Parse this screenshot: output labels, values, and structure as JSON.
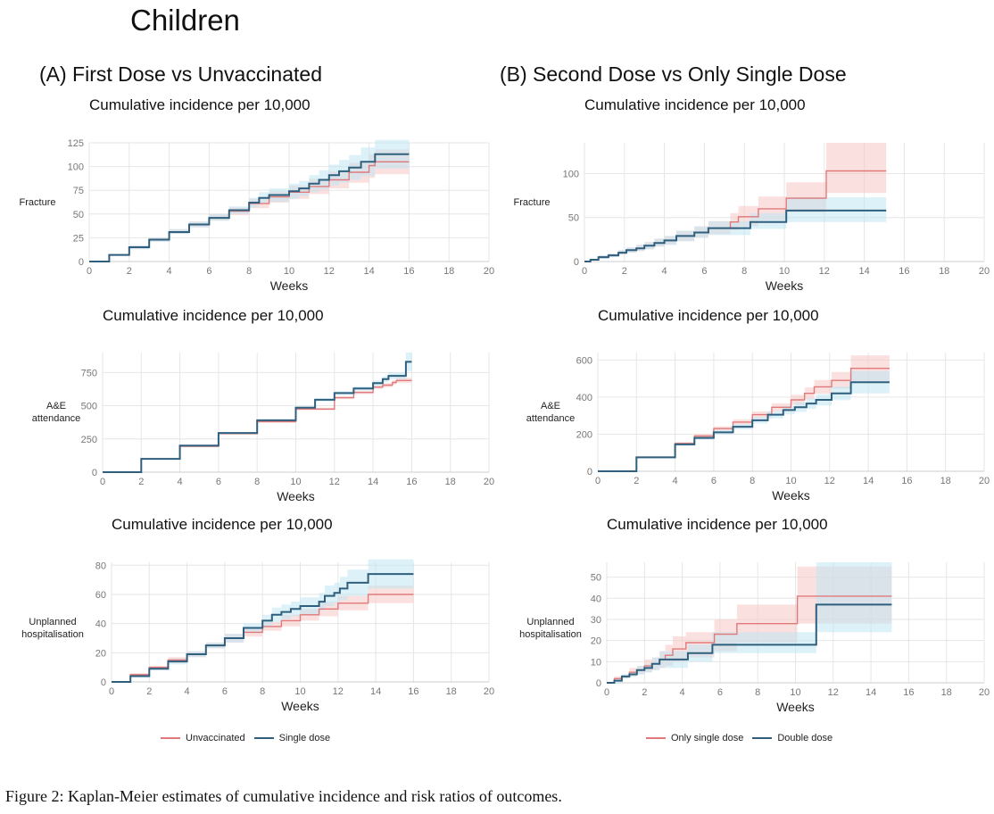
{
  "figure": {
    "title": "Children",
    "caption": "Figure 2: Kaplan-Meier estimates of cumulative incidence and risk ratios of outcomes.",
    "colors": {
      "red": "#e07a7a",
      "red_band": "#f6c9c6",
      "blue": "#2f5f7d",
      "blue_band": "#bfe6f2",
      "grid": "#e6e6e6",
      "axis": "#cccccc",
      "tick": "#777777"
    }
  },
  "columns": [
    {
      "title": "(A) First Dose vs Unvaccinated",
      "legend": [
        {
          "label": "Unvaccinated",
          "color": "#e07a7a"
        },
        {
          "label": "Single dose",
          "color": "#2f5f7d"
        }
      ]
    },
    {
      "title": "(B) Second Dose vs Only Single Dose",
      "legend": [
        {
          "label": "Only single dose",
          "color": "#e07a7a"
        },
        {
          "label": "Double dose",
          "color": "#2f5f7d"
        }
      ]
    }
  ],
  "chart_data": [
    {
      "id": "A-fracture",
      "type": "line",
      "step": true,
      "title": "Cumulative incidence per 10,000",
      "xlabel": "Weeks",
      "ylabel": "Fracture",
      "xlim": [
        0,
        20
      ],
      "ylim": [
        0,
        125
      ],
      "xticks": [
        0,
        2,
        4,
        6,
        8,
        10,
        12,
        14,
        16,
        18,
        20
      ],
      "yticks": [
        0,
        25,
        50,
        75,
        100,
        125
      ],
      "series": [
        {
          "name": "Unvaccinated",
          "color": "red",
          "x": [
            0,
            1,
            2,
            3,
            4,
            5,
            6,
            7,
            8,
            9,
            10,
            11,
            12,
            13,
            14,
            14.3,
            16
          ],
          "y": [
            0,
            7,
            15,
            23,
            31,
            39,
            46,
            53,
            61,
            68,
            73,
            79,
            86,
            94,
            101,
            105,
            105
          ],
          "lower": [
            0,
            6,
            13,
            21,
            29,
            36,
            43,
            49,
            56,
            62,
            66,
            71,
            77,
            83,
            88,
            92,
            92
          ],
          "upper": [
            0,
            8,
            17,
            25,
            34,
            42,
            50,
            57,
            66,
            74,
            80,
            87,
            95,
            104,
            113,
            118,
            118
          ]
        },
        {
          "name": "Single dose",
          "color": "blue",
          "x": [
            0,
            1,
            2,
            3,
            4,
            5,
            6,
            7,
            8,
            8.5,
            9,
            10,
            10.5,
            11,
            11.5,
            12,
            12.5,
            13,
            13.6,
            14.3,
            16
          ],
          "y": [
            0,
            7,
            15,
            23,
            31,
            39,
            46,
            54,
            62,
            67,
            70,
            74,
            77,
            82,
            86,
            91,
            95,
            99,
            105,
            113,
            113
          ],
          "lower": [
            0,
            6,
            13,
            21,
            29,
            36,
            43,
            50,
            57,
            61,
            63,
            66,
            69,
            73,
            76,
            80,
            83,
            86,
            90,
            98,
            98
          ],
          "upper": [
            0,
            8,
            17,
            25,
            34,
            42,
            50,
            58,
            67,
            73,
            77,
            82,
            85,
            91,
            96,
            102,
            107,
            112,
            120,
            128,
            128
          ]
        }
      ]
    },
    {
      "id": "B-fracture",
      "type": "line",
      "step": true,
      "title": "Cumulative incidence per 10,000",
      "xlabel": "Weeks",
      "ylabel": "Fracture",
      "xlim": [
        0,
        20
      ],
      "ylim": [
        0,
        135
      ],
      "xticks": [
        0,
        2,
        4,
        6,
        8,
        10,
        12,
        14,
        16,
        18,
        20
      ],
      "yticks": [
        0,
        50,
        100
      ],
      "series": [
        {
          "name": "Only single dose",
          "color": "red",
          "x": [
            0,
            0.3,
            0.7,
            1.2,
            1.7,
            2.1,
            2.6,
            3.0,
            3.5,
            4.0,
            4.6,
            5.5,
            6.2,
            7.3,
            7.7,
            8.7,
            10.1,
            12.1,
            15.1
          ],
          "y": [
            0,
            2,
            5,
            7,
            10,
            13,
            15,
            18,
            21,
            24,
            29,
            33,
            38,
            45,
            51,
            60,
            72,
            103,
            103
          ],
          "lower": [
            0,
            1,
            3,
            5,
            8,
            10,
            12,
            14,
            17,
            19,
            23,
            27,
            31,
            36,
            40,
            47,
            56,
            78,
            78
          ],
          "upper": [
            0,
            3,
            7,
            9,
            13,
            16,
            19,
            22,
            26,
            29,
            35,
            40,
            46,
            55,
            63,
            74,
            90,
            135,
            135
          ]
        },
        {
          "name": "Double dose",
          "color": "blue",
          "x": [
            0,
            0.3,
            0.7,
            1.2,
            1.7,
            2.1,
            2.6,
            3.0,
            3.5,
            4.0,
            4.6,
            5.5,
            6.2,
            8.3,
            10.1,
            15.1
          ],
          "y": [
            0,
            2,
            5,
            7,
            10,
            13,
            15,
            18,
            21,
            24,
            29,
            33,
            38,
            45,
            58,
            58
          ],
          "lower": [
            0,
            1,
            3,
            5,
            8,
            10,
            12,
            14,
            17,
            19,
            23,
            27,
            30,
            37,
            45,
            45
          ],
          "upper": [
            0,
            3,
            7,
            9,
            13,
            16,
            19,
            22,
            26,
            29,
            35,
            40,
            46,
            55,
            73,
            73
          ]
        }
      ]
    },
    {
      "id": "A-ae",
      "type": "line",
      "step": true,
      "title": "Cumulative incidence per 10,000",
      "xlabel": "Weeks",
      "ylabel": "A&E attendance",
      "xlim": [
        0,
        20
      ],
      "ylim": [
        0,
        900
      ],
      "xticks": [
        0,
        2,
        4,
        6,
        8,
        10,
        12,
        14,
        16,
        18,
        20
      ],
      "yticks": [
        0,
        250,
        500,
        750
      ],
      "series": [
        {
          "name": "Unvaccinated",
          "color": "red",
          "x": [
            0,
            2,
            4,
            6,
            8,
            10,
            12,
            13,
            14,
            14.5,
            15,
            15.2,
            16
          ],
          "y": [
            0,
            100,
            195,
            290,
            380,
            475,
            560,
            600,
            640,
            655,
            675,
            690,
            690
          ],
          "lower": [
            0,
            97,
            190,
            284,
            372,
            466,
            549,
            588,
            626,
            640,
            658,
            670,
            670
          ],
          "upper": [
            0,
            103,
            200,
            296,
            388,
            484,
            571,
            612,
            654,
            670,
            692,
            710,
            710
          ]
        },
        {
          "name": "Single dose",
          "color": "blue",
          "x": [
            0,
            2,
            4,
            6,
            8,
            10,
            11,
            12,
            13,
            14,
            14.5,
            14.8,
            15.7,
            16
          ],
          "y": [
            0,
            100,
            200,
            295,
            390,
            485,
            545,
            595,
            630,
            670,
            700,
            725,
            830,
            830
          ],
          "lower": [
            0,
            97,
            195,
            289,
            382,
            475,
            533,
            581,
            614,
            651,
            678,
            700,
            760,
            760
          ],
          "upper": [
            0,
            103,
            205,
            301,
            398,
            495,
            557,
            609,
            646,
            689,
            722,
            750,
            900,
            900
          ]
        }
      ]
    },
    {
      "id": "B-ae",
      "type": "line",
      "step": true,
      "title": "Cumulative incidence per 10,000",
      "xlabel": "Weeks",
      "ylabel": "A&E attendance",
      "xlim": [
        0,
        20
      ],
      "ylim": [
        0,
        640
      ],
      "xticks": [
        0,
        2,
        4,
        6,
        8,
        10,
        12,
        14,
        16,
        18,
        20
      ],
      "yticks": [
        0,
        200,
        400,
        600
      ],
      "series": [
        {
          "name": "Only single dose",
          "color": "red",
          "x": [
            0,
            2,
            4,
            5,
            6,
            7,
            8,
            9,
            10,
            10.7,
            11.2,
            12.1,
            13.1,
            15.1
          ],
          "y": [
            0,
            75,
            150,
            190,
            230,
            265,
            305,
            345,
            385,
            420,
            455,
            490,
            555,
            555
          ],
          "lower": [
            0,
            70,
            142,
            180,
            218,
            250,
            287,
            323,
            358,
            388,
            418,
            445,
            485,
            485
          ],
          "upper": [
            0,
            80,
            158,
            200,
            242,
            280,
            323,
            367,
            412,
            452,
            492,
            535,
            625,
            625
          ]
        },
        {
          "name": "Double dose",
          "color": "blue",
          "x": [
            0,
            2,
            4,
            5,
            6,
            7,
            8,
            8.8,
            9.6,
            10.2,
            10.8,
            11.3,
            12.1,
            13.1,
            15.1
          ],
          "y": [
            0,
            75,
            145,
            180,
            210,
            240,
            275,
            305,
            330,
            345,
            365,
            385,
            420,
            480,
            480
          ],
          "lower": [
            0,
            70,
            137,
            170,
            198,
            226,
            258,
            285,
            307,
            320,
            337,
            355,
            383,
            420,
            420
          ],
          "upper": [
            0,
            80,
            153,
            190,
            222,
            254,
            292,
            325,
            353,
            370,
            393,
            415,
            457,
            540,
            540
          ]
        }
      ]
    },
    {
      "id": "A-hosp",
      "type": "line",
      "step": true,
      "title": "Cumulative incidence per 10,000",
      "xlabel": "Weeks",
      "ylabel": "Unplanned hospitalisation",
      "xlim": [
        0,
        20
      ],
      "ylim": [
        0,
        82
      ],
      "xticks": [
        0,
        2,
        4,
        6,
        8,
        10,
        12,
        14,
        16,
        18,
        20
      ],
      "yticks": [
        0,
        20,
        40,
        60,
        80
      ],
      "series": [
        {
          "name": "Unvaccinated",
          "color": "red",
          "x": [
            0,
            1,
            2,
            3,
            4,
            5,
            6,
            7,
            8,
            9,
            10,
            11,
            12,
            13.6,
            16
          ],
          "y": [
            0,
            5,
            10,
            15,
            19,
            25,
            30,
            34,
            38,
            42,
            46,
            50,
            54,
            60,
            60
          ],
          "lower": [
            0,
            4,
            9,
            13,
            17,
            23,
            27,
            31,
            35,
            38,
            42,
            45,
            49,
            54,
            54
          ],
          "upper": [
            0,
            6,
            11,
            17,
            21,
            27,
            33,
            37,
            41,
            46,
            50,
            55,
            59,
            66,
            66
          ]
        },
        {
          "name": "Single dose",
          "color": "blue",
          "x": [
            0,
            1,
            2,
            3,
            4,
            5,
            6,
            7,
            8,
            8.5,
            9,
            9.5,
            10,
            11,
            11.3,
            11.8,
            12.1,
            12.5,
            13.6,
            16
          ],
          "y": [
            0,
            4,
            9,
            14,
            19,
            25,
            30,
            37,
            42,
            46,
            48,
            50,
            52,
            55,
            59,
            61,
            64,
            68,
            74,
            74
          ],
          "lower": [
            0,
            3,
            8,
            12,
            17,
            23,
            27,
            34,
            38,
            41,
            43,
            45,
            46,
            49,
            52,
            54,
            56,
            59,
            64,
            64
          ],
          "upper": [
            0,
            5,
            10,
            16,
            21,
            27,
            33,
            40,
            46,
            51,
            53,
            55,
            58,
            61,
            66,
            68,
            72,
            77,
            84,
            84
          ]
        }
      ]
    },
    {
      "id": "B-hosp",
      "type": "line",
      "step": true,
      "title": "Cumulative incidence per 10,000",
      "xlabel": "Weeks",
      "ylabel": "Unplanned hospitalisation",
      "xlim": [
        0,
        20
      ],
      "ylim": [
        0,
        57
      ],
      "xticks": [
        0,
        2,
        4,
        6,
        8,
        10,
        12,
        14,
        16,
        18,
        20
      ],
      "yticks": [
        0,
        10,
        20,
        30,
        40,
        50
      ],
      "series": [
        {
          "name": "Only single dose",
          "color": "red",
          "x": [
            0,
            0.4,
            0.8,
            1.2,
            1.6,
            2.0,
            2.4,
            2.8,
            3.1,
            3.5,
            4.2,
            5.7,
            6.9,
            10.1,
            15.1
          ],
          "y": [
            0,
            2,
            3,
            5,
            6,
            8,
            9,
            11,
            13,
            16,
            19,
            23,
            28,
            41,
            41
          ],
          "lower": [
            0,
            1,
            2,
            3,
            4,
            5,
            6,
            7,
            8,
            10,
            12,
            15,
            19,
            28,
            28
          ],
          "upper": [
            0,
            3,
            4,
            7,
            8,
            11,
            12,
            15,
            18,
            22,
            24,
            30,
            37,
            55,
            55
          ]
        },
        {
          "name": "Double dose",
          "color": "blue",
          "x": [
            0,
            0.4,
            0.8,
            1.2,
            1.6,
            2.0,
            2.4,
            2.8,
            4.3,
            5.6,
            11.1,
            15.1
          ],
          "y": [
            0,
            1,
            3,
            4,
            6,
            7,
            9,
            11,
            14,
            18,
            37,
            37
          ],
          "lower": [
            0,
            0,
            2,
            3,
            4,
            5,
            6,
            7,
            10,
            14,
            24,
            24
          ],
          "upper": [
            0,
            2,
            4,
            5,
            8,
            9,
            12,
            15,
            18,
            24,
            57,
            57
          ]
        }
      ]
    }
  ]
}
